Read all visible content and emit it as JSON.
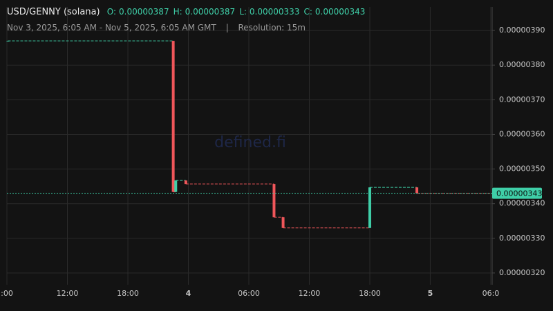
{
  "chart_data": {
    "type": "candlestick",
    "title": "USD/GENNY (solana)",
    "ohlc_legend": [
      {
        "label": "O:",
        "value": "0.00000387"
      },
      {
        "label": "H:",
        "value": "0.00000387"
      },
      {
        "label": "L:",
        "value": "0.00000333"
      },
      {
        "label": "C:",
        "value": "0.00000343"
      }
    ],
    "subtitle": "Nov 3, 2025, 6:05 AM - Nov 5, 2025, 6:05 AM GMT",
    "resolution": "Resolution: 15m",
    "watermark": "defined.fi",
    "up_color": "#3fcfa8",
    "down_color": "#f0565a",
    "x": [
      6.1,
      22.5,
      22.75,
      23.75,
      32.5,
      33.4,
      42,
      46.67
    ],
    "open": [
      3.87e-06,
      3.87e-06,
      3.434e-06,
      3.467e-06,
      3.457e-06,
      3.361e-06,
      3.33e-06,
      3.447e-06
    ],
    "high": [
      3.87e-06,
      3.87e-06,
      3.467e-06,
      3.467e-06,
      3.457e-06,
      3.361e-06,
      3.447e-06,
      3.447e-06
    ],
    "low": [
      3.87e-06,
      3.434e-06,
      3.434e-06,
      3.457e-06,
      3.361e-06,
      3.33e-06,
      3.33e-06,
      3.43e-06
    ],
    "close": [
      3.87e-06,
      3.434e-06,
      3.467e-06,
      3.457e-06,
      3.361e-06,
      3.33e-06,
      3.447e-06,
      3.43e-06
    ],
    "last_price": {
      "value": 3.43e-06,
      "label": "0.00000343"
    },
    "xlim": [
      6,
      54.14
    ],
    "xticks": [
      {
        "value": 6,
        "label": ":00"
      },
      {
        "value": 12,
        "label": "12:00"
      },
      {
        "value": 18,
        "label": "18:00"
      },
      {
        "value": 24,
        "label": "4"
      },
      {
        "value": 30,
        "label": "06:00"
      },
      {
        "value": 36,
        "label": "12:00"
      },
      {
        "value": 42,
        "label": "18:00"
      },
      {
        "value": 48,
        "label": "5"
      },
      {
        "value": 54,
        "label": "06:0"
      }
    ],
    "ylim": [
      3.166e-06,
      3.968e-06
    ],
    "yticks": [
      {
        "value": 3.2e-06,
        "label": "0.00000320"
      },
      {
        "value": 3.3e-06,
        "label": "0.00000330"
      },
      {
        "value": 3.4e-06,
        "label": "0.00000340"
      },
      {
        "value": 3.5e-06,
        "label": "0.00000350"
      },
      {
        "value": 3.6e-06,
        "label": "0.00000360"
      },
      {
        "value": 3.7e-06,
        "label": "0.00000370"
      },
      {
        "value": 3.8e-06,
        "label": "0.00000380"
      },
      {
        "value": 3.9e-06,
        "label": "0.00000390"
      }
    ],
    "grid": true
  }
}
